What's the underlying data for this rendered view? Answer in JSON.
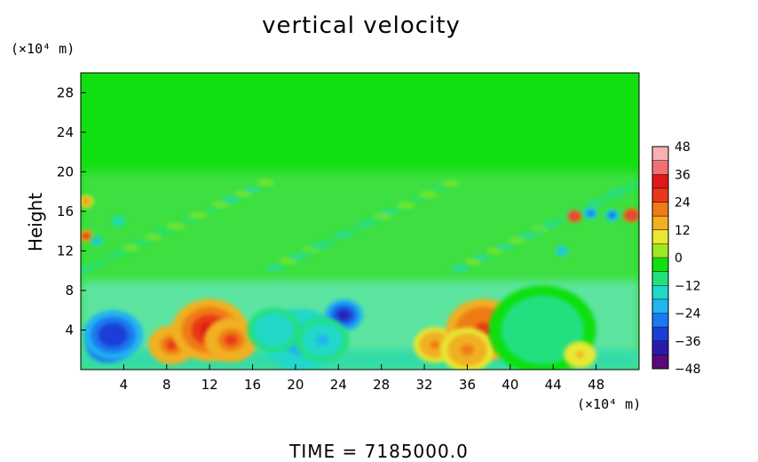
{
  "chart_data": {
    "type": "heatmap",
    "title": "vertical velocity",
    "ylabel": "Height",
    "y_unit": "(×10⁴ m)",
    "x_unit": "(×10⁴ m)",
    "xlim": [
      0,
      52
    ],
    "ylim": [
      0,
      30
    ],
    "x_ticks": [
      "4",
      "8",
      "12",
      "16",
      "20",
      "24",
      "28",
      "32",
      "36",
      "40",
      "44",
      "48"
    ],
    "y_ticks": [
      "4",
      "8",
      "12",
      "16",
      "20",
      "24",
      "28"
    ],
    "colorbar": {
      "range": [
        -48,
        48
      ],
      "ticks": [
        "48",
        "36",
        "24",
        "12",
        "0",
        "−12",
        "−24",
        "−36",
        "−48"
      ],
      "colors": [
        "#5a0a78",
        "#2a1aa8",
        "#1a3cd8",
        "#1c78f0",
        "#20b4f0",
        "#20d8c8",
        "#22e080",
        "#10e010",
        "#9ee822",
        "#e8e830",
        "#f0b020",
        "#f07a18",
        "#e83818",
        "#e01818",
        "#f07070",
        "#f8b0b0"
      ]
    },
    "features": [
      {
        "x": 2.5,
        "y": 2.5,
        "value": -48,
        "r": 2.0
      },
      {
        "x": 3.0,
        "y": 3.5,
        "value": -36,
        "r": 2.8
      },
      {
        "x": 8.5,
        "y": 2.5,
        "value": 26,
        "r": 2.2
      },
      {
        "x": 12.0,
        "y": 4.0,
        "value": 30,
        "r": 3.5
      },
      {
        "x": 14.0,
        "y": 3.0,
        "value": 24,
        "r": 2.5
      },
      {
        "x": 20.5,
        "y": 3.0,
        "value": -24,
        "r": 3.5
      },
      {
        "x": 18.0,
        "y": 4.0,
        "value": -18,
        "r": 2.5
      },
      {
        "x": 24.5,
        "y": 5.5,
        "value": -40,
        "r": 1.8
      },
      {
        "x": 22.5,
        "y": 3.0,
        "value": -20,
        "r": 2.5
      },
      {
        "x": 33.0,
        "y": 2.5,
        "value": 20,
        "r": 2.0
      },
      {
        "x": 37.5,
        "y": 4.0,
        "value": 28,
        "r": 3.5
      },
      {
        "x": 36.0,
        "y": 2.0,
        "value": 18,
        "r": 2.5
      },
      {
        "x": 43.0,
        "y": 4.0,
        "value": -10,
        "r": 5.0
      },
      {
        "x": 46.5,
        "y": 1.5,
        "value": 14,
        "r": 1.5
      },
      {
        "x": 46.0,
        "y": 15.5,
        "value": 38,
        "r": 0.7
      },
      {
        "x": 47.5,
        "y": 15.8,
        "value": -30,
        "r": 0.7
      },
      {
        "x": 49.5,
        "y": 15.6,
        "value": -34,
        "r": 0.7
      },
      {
        "x": 51.3,
        "y": 15.6,
        "value": 40,
        "r": 0.8
      },
      {
        "x": 44.8,
        "y": 12.0,
        "value": -24,
        "r": 0.6
      },
      {
        "x": 0.5,
        "y": 13.5,
        "value": 30,
        "r": 0.7
      },
      {
        "x": 0.5,
        "y": 17.0,
        "value": 20,
        "r": 0.7
      },
      {
        "x": 1.5,
        "y": 13.0,
        "value": -22,
        "r": 0.6
      },
      {
        "x": 3.5,
        "y": 15.0,
        "value": -16,
        "r": 0.7
      }
    ]
  },
  "footer": "TIME  =  7185000.0"
}
